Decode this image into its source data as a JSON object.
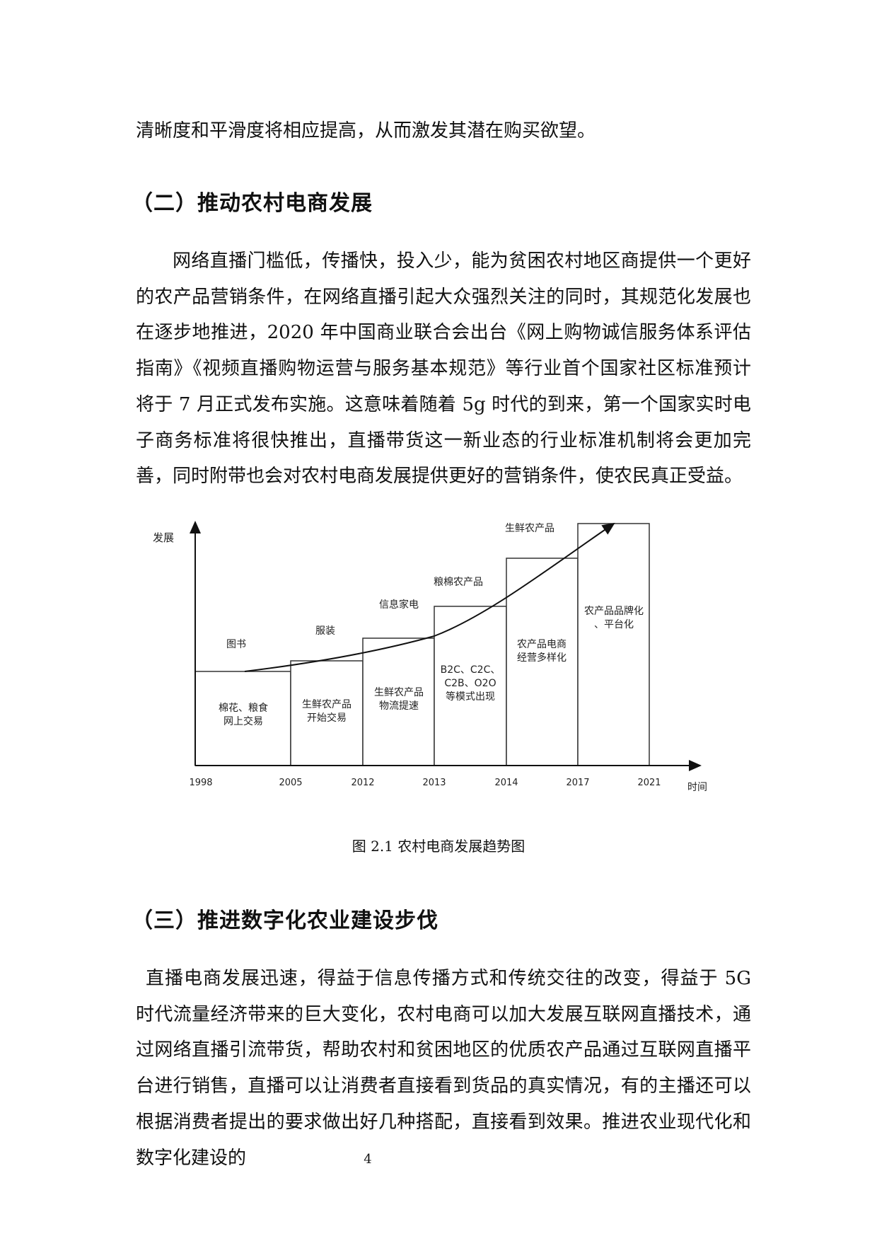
{
  "paragraph_top": "清晰度和平滑度将相应提高，从而激发其潜在购买欲望。",
  "section2": {
    "heading": "（二）推动农村电商发展",
    "body": "网络直播门槛低，传播快，投入少，能为贫困农村地区商提供一个更好的农产品营销条件，在网络直播引起大众强烈关注的同时，其规范化发展也在逐步地推进，2020 年中国商业联合会出台《网上购物诚信服务体系评估指南》《视频直播购物运营与服务基本规范》等行业首个国家社区标准预计将于 7 月正式发布实施。这意味着随着 5g 时代的到来，第一个国家实时电子商务标准将很快推出，直播带货这一新业态的行业标准机制将会更加完善，同时附带也会对农村电商发展提供更好的营销条件，使农民真正受益。"
  },
  "figure": {
    "ylabel": "发展",
    "xlabel": "时间",
    "years": [
      "1998",
      "2005",
      "2012",
      "2013",
      "2014",
      "2017",
      "2021"
    ],
    "stages": [
      {
        "top_label": "图书",
        "inside": [
          "棉花、粮食",
          "网上交易"
        ]
      },
      {
        "top_label": "服装",
        "inside": [
          "生鲜农产品",
          "开始交易"
        ]
      },
      {
        "top_label": "信息家电",
        "inside": [
          "生鲜农产品",
          "物流提速"
        ]
      },
      {
        "top_label": "粮棉农产品",
        "inside": [
          "B2C、C2C、",
          "C2B、O2O",
          "等模式出现"
        ]
      },
      {
        "top_label": "生鲜农产品",
        "inside": [
          "农产品电商",
          "经营多样化"
        ]
      },
      {
        "top_label": "",
        "inside": [
          "农产品品牌化",
          "、平台化"
        ]
      }
    ],
    "caption": "图 2.1 农村电商发展趋势图"
  },
  "section3": {
    "heading": "（三）推进数字化农业建设步伐",
    "body": "直播电商发展迅速，得益于信息传播方式和传统交往的改变，得益于 5G 时代流量经济带来的巨大变化，农村电商可以加大发展互联网直播技术，通过网络直播引流带货，帮助农村和贫困地区的优质农产品通过互联网直播平台进行销售，直播可以让消费者直接看到货品的真实情况，有的主播还可以根据消费者提出的要求做出好几种搭配，直接看到效果。推进农业现代化和数字化建设的"
  },
  "page_number": "4"
}
